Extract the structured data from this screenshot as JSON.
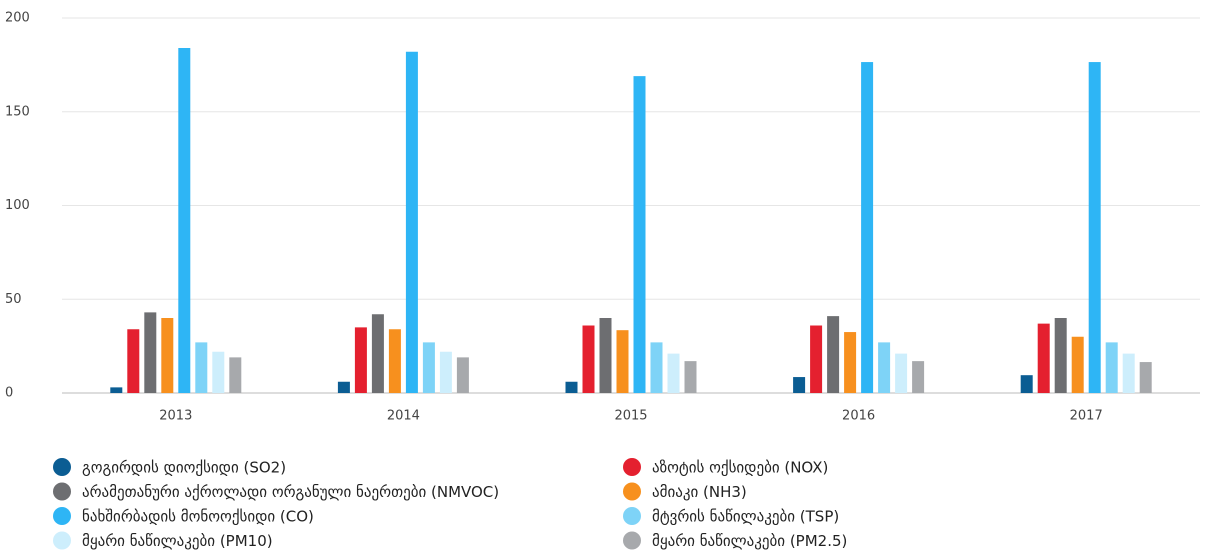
{
  "chart_data": {
    "type": "bar",
    "categories": [
      "2013",
      "2014",
      "2015",
      "2016",
      "2017"
    ],
    "series": [
      {
        "name": "გოგირდის დიოქსიდი (SO2)",
        "color": "#0b5d93",
        "values": [
          3,
          6,
          6,
          8.5,
          9.5
        ]
      },
      {
        "name": "აზოტის ოქსიდები (NOX)",
        "color": "#e4202f",
        "values": [
          34,
          35,
          36,
          36,
          37
        ]
      },
      {
        "name": "არამეთანური აქროლადი ორგანული ნაერთები (NMVOC)",
        "color": "#6d6e71",
        "values": [
          43,
          42,
          40,
          41,
          40
        ]
      },
      {
        "name": "ამიაკი (NH3)",
        "color": "#f7901e",
        "values": [
          40,
          34,
          33.5,
          32.5,
          30
        ]
      },
      {
        "name": "ნახშირბადის მონოოქსიდი (CO)",
        "color": "#2eb5f5",
        "values": [
          184,
          182,
          169,
          176.5,
          176.5
        ]
      },
      {
        "name": "მტვრის ნაწილაკები (TSP)",
        "color": "#7ed3f7",
        "values": [
          27,
          27,
          27,
          27,
          27
        ]
      },
      {
        "name": "მყარი ნაწილაკები (PM10)",
        "color": "#cdeefc",
        "values": [
          22,
          22,
          21,
          21,
          21
        ]
      },
      {
        "name": "მყარი ნაწილაკები (PM2.5)",
        "color": "#a7a9ac",
        "values": [
          19,
          19,
          17,
          17,
          16.5
        ]
      }
    ],
    "ylim": [
      0,
      200
    ],
    "yticks": [
      0,
      50,
      100,
      150,
      200
    ],
    "grid": true,
    "legend": "bottom"
  }
}
